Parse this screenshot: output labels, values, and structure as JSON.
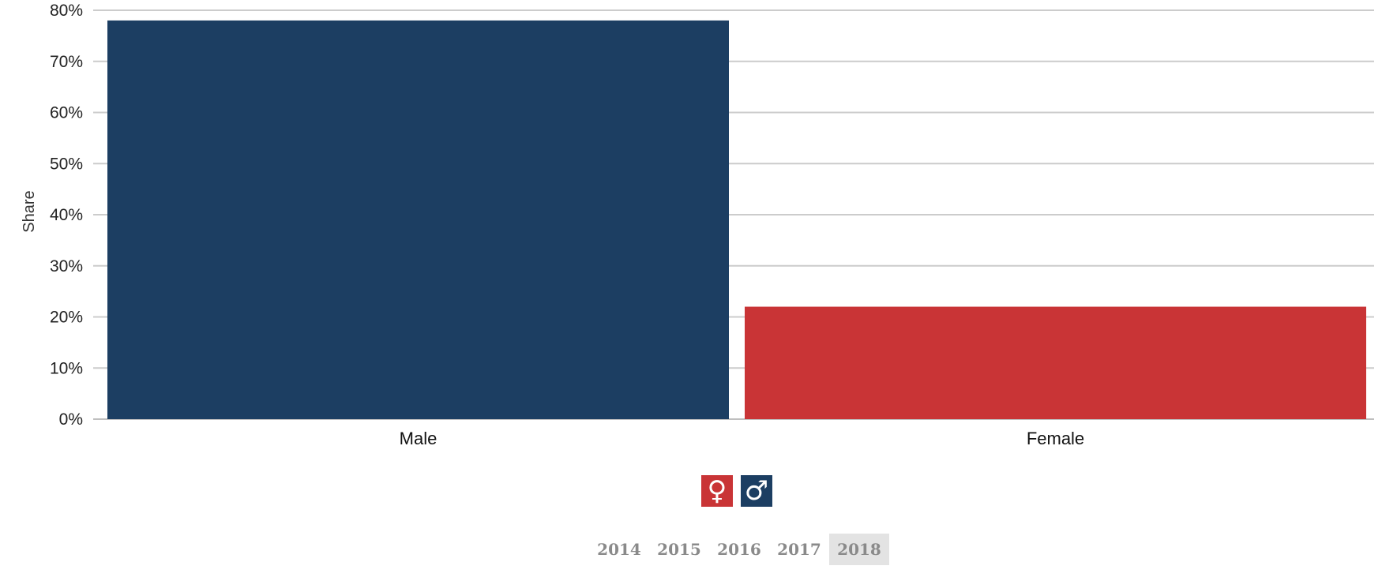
{
  "chart_data": {
    "type": "bar",
    "categories": [
      "Male",
      "Female"
    ],
    "values": [
      78,
      22
    ],
    "colors": [
      "#1c3e62",
      "#c93436"
    ],
    "ylabel": "Share",
    "ylim": [
      0,
      80
    ],
    "yticks": [
      0,
      10,
      20,
      30,
      40,
      50,
      60,
      70,
      80
    ],
    "ytick_suffix": "%",
    "grid": true
  },
  "legend": [
    {
      "symbol": "♀",
      "icon": "female-symbol-icon",
      "color": "#c93436"
    },
    {
      "symbol": "♂",
      "icon": "male-symbol-icon",
      "color": "#1c3e62"
    }
  ],
  "years": {
    "options": [
      "2014",
      "2015",
      "2016",
      "2017",
      "2018"
    ],
    "selected": "2018"
  }
}
